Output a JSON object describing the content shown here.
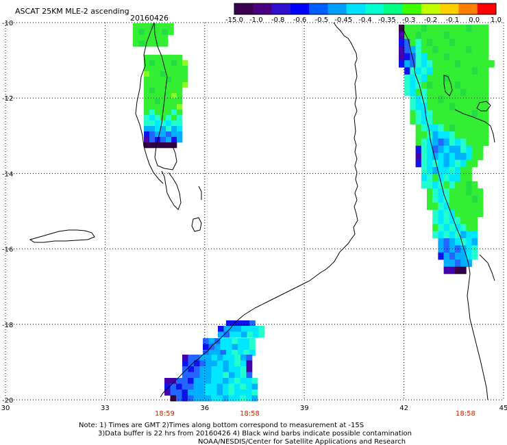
{
  "title": "ASCAT 25KM MLE-2 ascending",
  "date": "20160426",
  "colorbar": {
    "tick_labels": [
      "-15.0",
      "-1.0",
      "-0.8",
      "-0.6",
      "-0.5",
      "-0.45",
      "-0.4",
      "-0.35",
      "-0.3",
      "-0.2",
      "-0.1",
      "0.0",
      "1.0"
    ],
    "colors": [
      "#3a0050",
      "#4b0082",
      "#3010d0",
      "#0000ff",
      "#0060ff",
      "#00a0ff",
      "#00e0ff",
      "#00ffd0",
      "#00ff80",
      "#40ff00",
      "#c0ff00",
      "#ffd000",
      "#ff8000",
      "#ff0000"
    ]
  },
  "axes": {
    "lat_ticks": [
      "-10",
      "-12",
      "-14",
      "-16",
      "-18",
      "-20"
    ],
    "lon_ticks": [
      "30",
      "33",
      "36",
      "39",
      "42",
      "45"
    ]
  },
  "pass_times": [
    "18:59",
    "18:58",
    "18:58"
  ],
  "notes": {
    "line1": "Note: 1) Times are GMT 2)Times along bottom correspond to measurement at -15S",
    "line2": "3)Data buffer is 22 hrs from 20160426 4) Black wind barbs indicate possible contamination",
    "line3": "NOAA/NESDIS/Center for Satellite Applications and Research"
  },
  "colors": {
    "time_label": "#cc2200",
    "coast": "#000000",
    "grid": "#000000"
  }
}
